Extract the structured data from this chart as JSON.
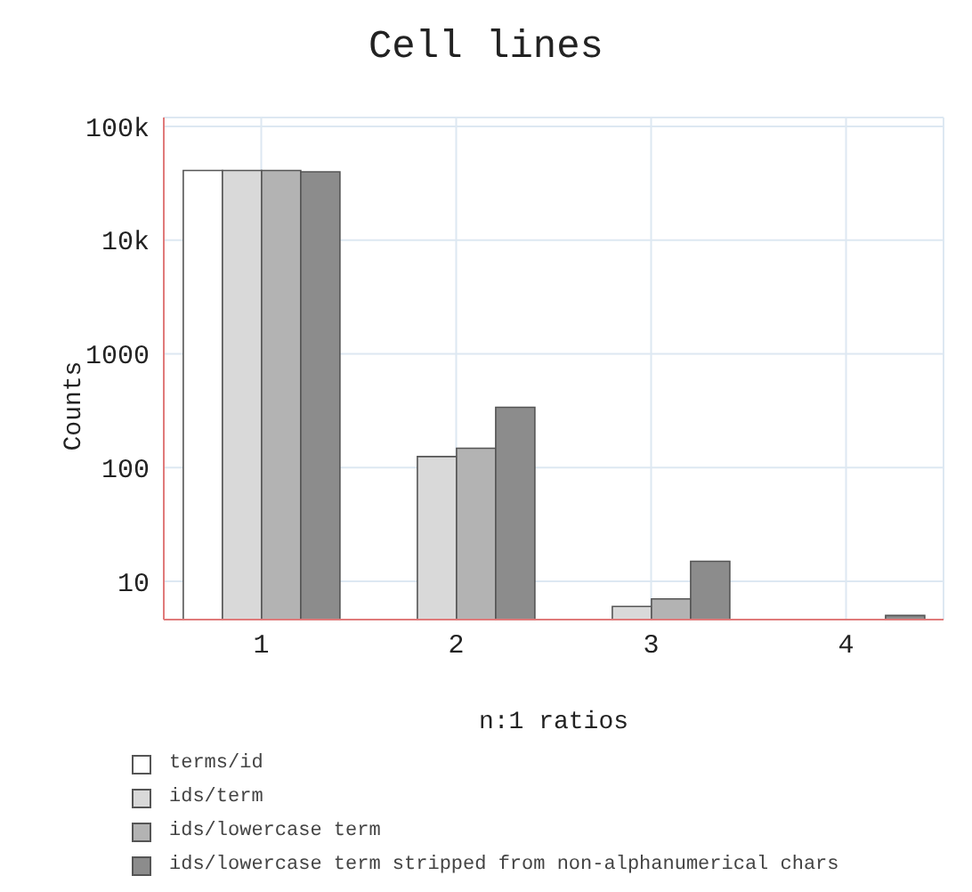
{
  "chart_data": {
    "type": "bar",
    "title": "Cell lines",
    "xlabel": "n:1 ratios",
    "ylabel": "Counts",
    "categories": [
      "1",
      "2",
      "3",
      "4"
    ],
    "series": [
      {
        "name": "terms/id",
        "color": "#ffffff",
        "values": [
          41000,
          null,
          null,
          null
        ]
      },
      {
        "name": "ids/term",
        "color": "#d9d9d9",
        "values": [
          41000,
          125,
          6,
          null
        ]
      },
      {
        "name": "ids/lowercase term",
        "color": "#b3b3b3",
        "values": [
          41000,
          148,
          7,
          null
        ]
      },
      {
        "name": "ids/lowercase term stripped from non-alphanumerical chars",
        "color": "#8c8c8c",
        "values": [
          40000,
          339,
          15,
          5
        ]
      }
    ],
    "log": "y",
    "ylim": [
      4.6,
      120000
    ],
    "yticks": [
      10,
      100,
      1000,
      {
        "value": 10000,
        "label": "10k"
      },
      {
        "value": 100000,
        "label": "100k"
      }
    ],
    "grid": true,
    "legend": "bottom"
  }
}
